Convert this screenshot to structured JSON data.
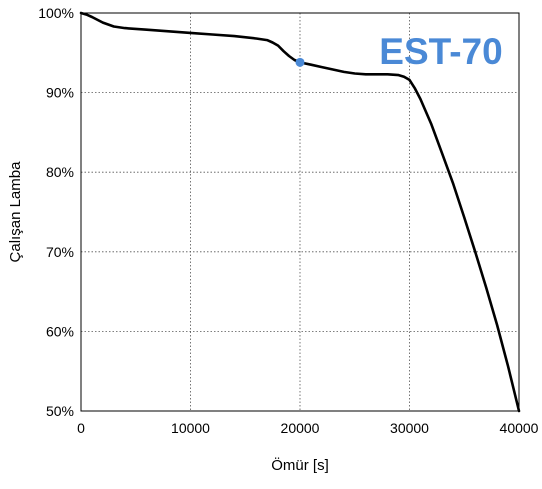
{
  "chart_data": {
    "type": "line",
    "title": "",
    "xlabel": "Ömür [s]",
    "ylabel": "Çalışan Lamba",
    "xlim": [
      0,
      40000
    ],
    "ylim": [
      50,
      100
    ],
    "x_ticks": [
      0,
      10000,
      20000,
      30000,
      40000
    ],
    "x_tick_labels": [
      "0",
      "10000",
      "20000",
      "30000",
      "40000"
    ],
    "y_ticks": [
      50,
      60,
      70,
      80,
      90,
      100
    ],
    "y_tick_labels": [
      "50%",
      "60%",
      "70%",
      "80%",
      "90%",
      "100%"
    ],
    "grid": true,
    "annotation": "EST-70",
    "annotation_color": "#4a89d6",
    "line_color": "#000000",
    "marker_color": "#4a89d6",
    "series": [
      {
        "x": [
          0,
          500,
          1000,
          2000,
          3000,
          4000,
          6000,
          8000,
          10000,
          12000,
          14000,
          16000,
          17000,
          17500,
          18000,
          18500,
          19000,
          19500,
          20000,
          21000,
          22000,
          23000,
          24000,
          25000,
          26000,
          27000,
          28000,
          29000,
          29500,
          30000,
          30500,
          31000,
          32000,
          33000,
          34000,
          35000,
          36000,
          37000,
          38000,
          39000,
          40000
        ],
        "y": [
          100,
          99.8,
          99.5,
          98.8,
          98.3,
          98.1,
          97.9,
          97.7,
          97.5,
          97.3,
          97.1,
          96.8,
          96.6,
          96.3,
          95.9,
          95.2,
          94.6,
          94.1,
          93.8,
          93.5,
          93.2,
          92.9,
          92.6,
          92.4,
          92.3,
          92.3,
          92.3,
          92.2,
          92.0,
          91.6,
          90.5,
          89.2,
          86.0,
          82.3,
          78.5,
          74.3,
          70.0,
          65.5,
          60.8,
          55.6,
          50.0
        ]
      }
    ],
    "highlight_point": {
      "x": 20000,
      "y": 93.8
    }
  }
}
